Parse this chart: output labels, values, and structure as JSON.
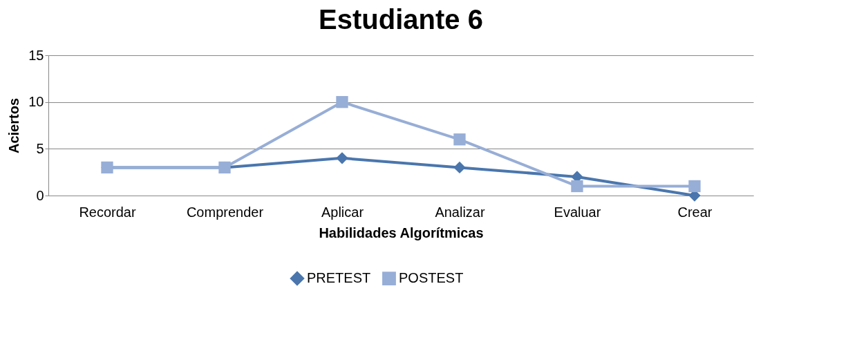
{
  "chart_data": {
    "type": "line",
    "title": "Estudiante 6",
    "xlabel": "Habilidades Algorítmicas",
    "ylabel": "Aciertos",
    "categories": [
      "Recordar",
      "Comprender",
      "Aplicar",
      "Analizar",
      "Evaluar",
      "Crear"
    ],
    "series": [
      {
        "name": "PRETEST",
        "color": "#4a76ad",
        "marker": "diamond",
        "values": [
          3,
          3,
          4,
          3,
          2,
          0
        ]
      },
      {
        "name": "POSTEST",
        "color": "#97aed6",
        "marker": "square",
        "values": [
          3,
          3,
          10,
          6,
          1,
          1
        ]
      }
    ],
    "ylim": [
      0,
      15
    ],
    "yticks": [
      0,
      5,
      10,
      15
    ],
    "grid": "y",
    "legend": "bottom",
    "line_style": "solid"
  }
}
